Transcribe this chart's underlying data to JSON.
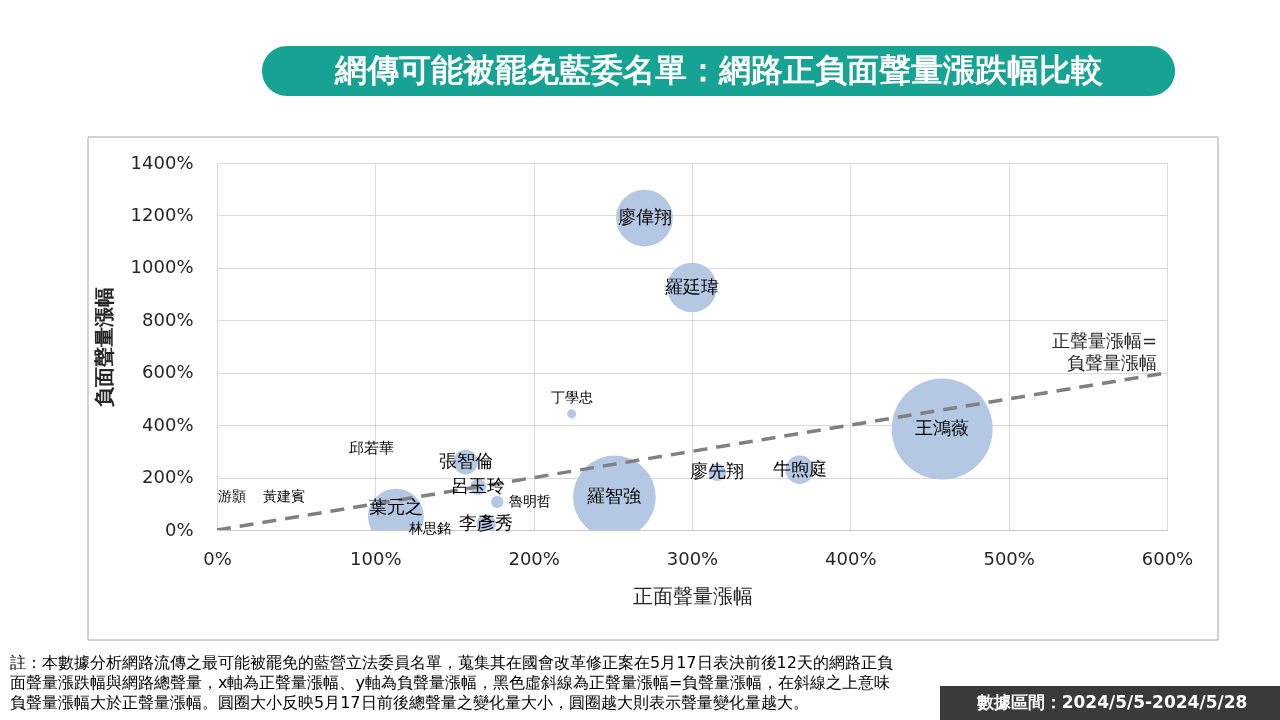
{
  "chart_data": {
    "type": "bubble",
    "title": "網傳可能被罷免藍委名單：網路正負面聲量漲跌幅比較",
    "xlabel": "正面聲量漲幅",
    "ylabel": "負面聲量漲幅",
    "xlim": [
      0,
      600
    ],
    "ylim": [
      0,
      1400
    ],
    "xticks": [
      {
        "value": 0,
        "label": "0%"
      },
      {
        "value": 100,
        "label": "100%"
      },
      {
        "value": 200,
        "label": "200%"
      },
      {
        "value": 300,
        "label": "300%"
      },
      {
        "value": 400,
        "label": "400%"
      },
      {
        "value": 500,
        "label": "500%"
      },
      {
        "value": 600,
        "label": "600%"
      }
    ],
    "yticks": [
      {
        "value": 0,
        "label": "0%"
      },
      {
        "value": 200,
        "label": "200%"
      },
      {
        "value": 400,
        "label": "400%"
      },
      {
        "value": 600,
        "label": "600%"
      },
      {
        "value": 800,
        "label": "800%"
      },
      {
        "value": 1000,
        "label": "1000%"
      },
      {
        "value": 1200,
        "label": "1200%"
      },
      {
        "value": 1400,
        "label": "1400%"
      }
    ],
    "grid": true,
    "series": [
      {
        "type": "bubble",
        "color": "#b4c8e4",
        "x": [
          270,
          300,
          458,
          368,
          251,
          113,
          157,
          165,
          177,
          170,
          224,
          316
        ],
        "values": [
          1190,
          925,
          385,
          230,
          126,
          51,
          259,
          164,
          107,
          23,
          443,
          220
        ],
        "sizes": [
          0.315,
          0.241,
          1,
          0.079,
          0.67,
          0.305,
          0.06,
          0.025,
          0.015,
          0.037,
          0.008,
          0.03
        ],
        "value_labels": [
          "廖偉翔",
          "羅廷瑋",
          "王鴻薇",
          "牛煦庭",
          "羅智強",
          "葉元之",
          "張智倫",
          "呂玉玲",
          "魯明哲",
          "李彥秀",
          "丁學忠",
          "廖先翔"
        ]
      },
      {
        "type": "line",
        "name": "正聲量漲幅=負聲量漲幅",
        "color": "#808080",
        "line_style": "dashed",
        "x": [
          0,
          600
        ],
        "values": [
          0,
          600
        ]
      }
    ],
    "annotations": [
      "游顥",
      "黃建賓",
      "邱若華",
      "林思銘",
      "註：本數據分析網路流傳之最可能被罷免的藍營立法委員名單，蒐集其在國會改革修正案在5月17日表決前後12天的網路正負面聲量漲跌幅與網路總聲量，x軸為正聲量漲幅、y軸為負聲量漲幅，黑色虛斜線為正聲量漲幅=負聲量漲幅，在斜線之上意味負聲量漲幅大於正聲量漲幅。圓圈大小反映5月17日前後總聲量之變化量大小，圓圈越大則表示聲量變化量越大。",
      "數據區間：2024/5/5-2024/5/28"
    ]
  }
}
